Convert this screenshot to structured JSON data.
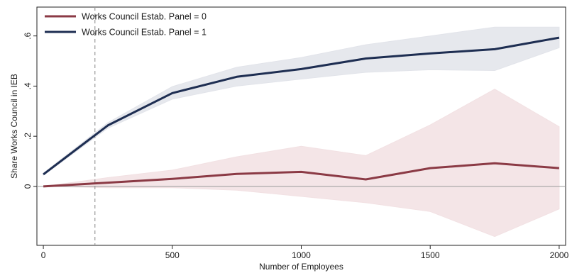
{
  "chart_data": {
    "type": "line",
    "xlabel": "Number of Employees",
    "ylabel": "Share Works Council in IEB",
    "x_ticks": [
      0,
      500,
      1000,
      1500,
      2000
    ],
    "y_ticks": [
      {
        "value": 0,
        "label": "0"
      },
      {
        "value": 0.2,
        "label": ".2"
      },
      {
        "value": 0.4,
        "label": ".4"
      },
      {
        "value": 0.6,
        "label": ".6"
      }
    ],
    "xlim": [
      -25,
      2025
    ],
    "ylim": [
      -0.235,
      0.715
    ],
    "grid": false,
    "reference_lines": {
      "vertical_dashed_x": 200,
      "horizontal_y": 0
    },
    "legend_position": "top-left",
    "x": [
      0,
      250,
      500,
      750,
      1000,
      1250,
      1500,
      1750,
      2000
    ],
    "series": [
      {
        "name": "Works Council Estab. Panel = 0",
        "color": "#8B3A45",
        "band_color": "#f2e1e3",
        "values": [
          0.0,
          0.015,
          0.03,
          0.05,
          0.058,
          0.028,
          0.073,
          0.092,
          0.073
        ],
        "ci_lower": [
          0.0,
          -0.005,
          -0.005,
          -0.015,
          -0.04,
          -0.065,
          -0.1,
          -0.2,
          -0.09
        ],
        "ci_upper": [
          0.0,
          0.035,
          0.065,
          0.118,
          0.16,
          0.123,
          0.245,
          0.388,
          0.238
        ]
      },
      {
        "name": "Works Council Estab. Panel = 1",
        "color": "#1e2e52",
        "band_color": "#e2e4ea",
        "values": [
          0.048,
          0.243,
          0.372,
          0.437,
          0.468,
          0.51,
          0.53,
          0.547,
          0.593
        ],
        "ci_lower": [
          0.044,
          0.232,
          0.348,
          0.4,
          0.428,
          0.455,
          0.465,
          0.462,
          0.553
        ],
        "ci_upper": [
          0.053,
          0.254,
          0.398,
          0.475,
          0.514,
          0.565,
          0.6,
          0.635,
          0.635
        ]
      }
    ]
  }
}
